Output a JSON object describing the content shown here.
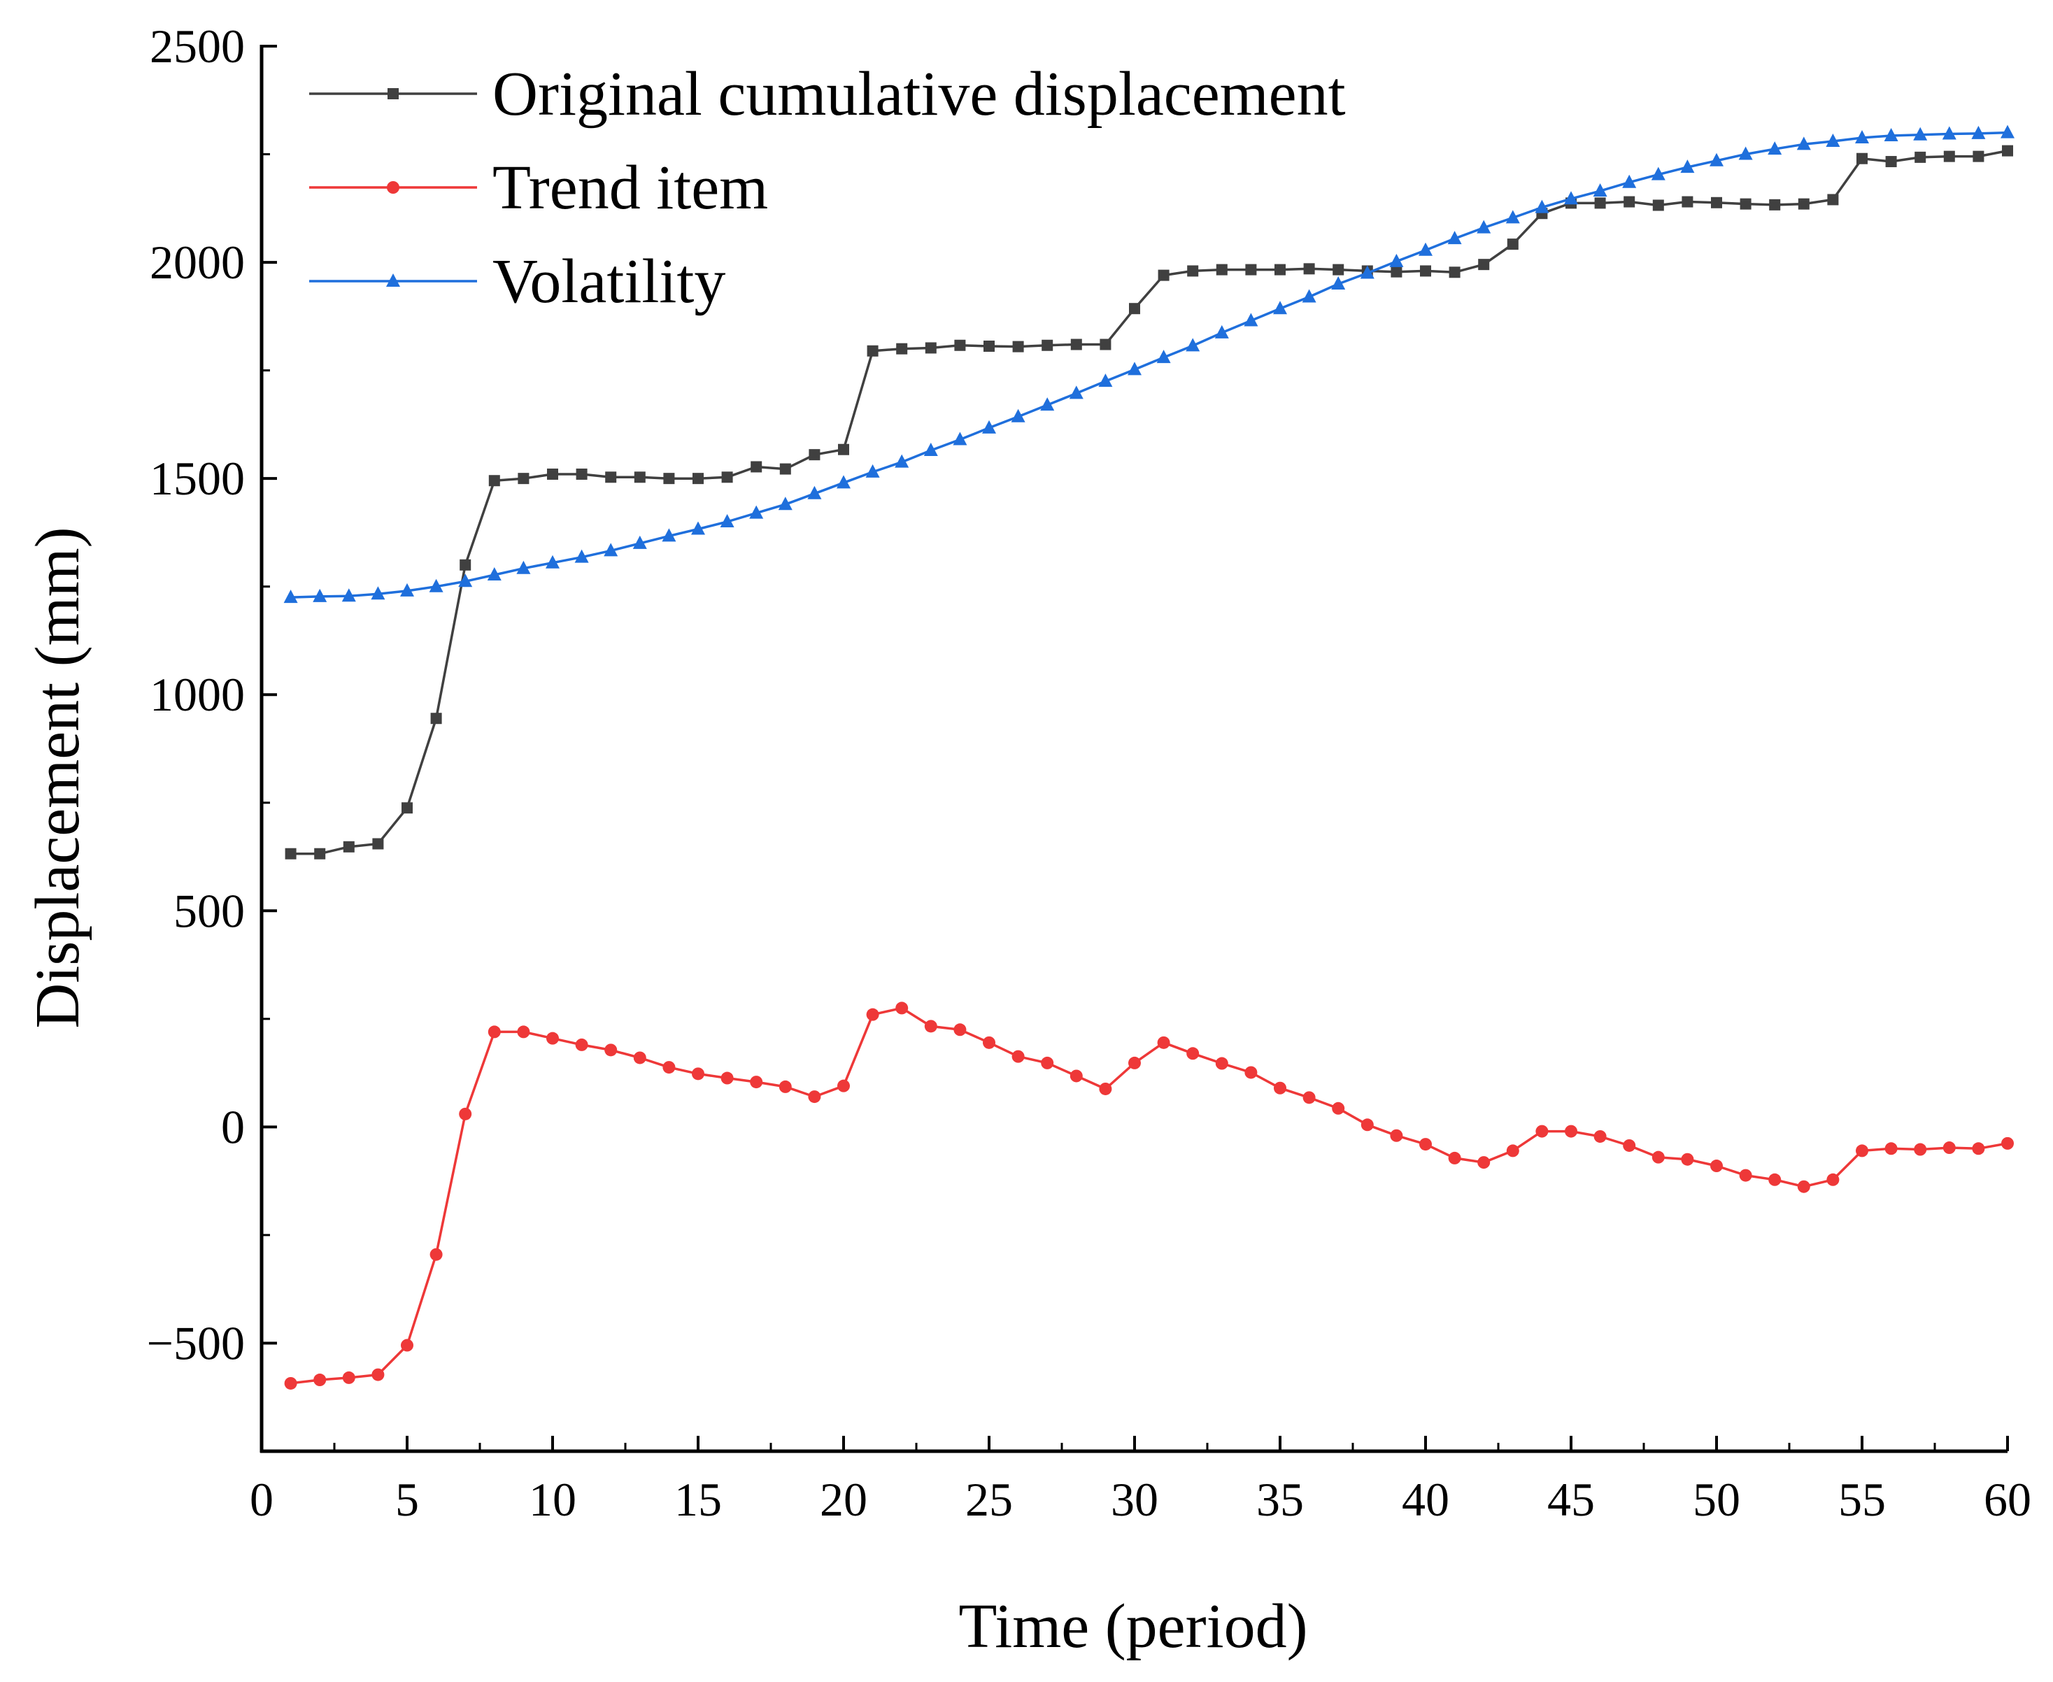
{
  "chart_data": {
    "type": "line",
    "title": "",
    "xlabel": "Time (period)",
    "ylabel": "Displacement (mm)",
    "xlim": [
      0,
      60
    ],
    "ylim": [
      -750,
      2500
    ],
    "x_ticks": [
      0,
      5,
      10,
      15,
      20,
      25,
      30,
      35,
      40,
      45,
      50,
      55,
      60
    ],
    "y_ticks": [
      -500,
      0,
      500,
      1000,
      1500,
      2000,
      2500
    ],
    "x_tick_labels": [
      "0",
      "5",
      "10",
      "15",
      "20",
      "25",
      "30",
      "35",
      "40",
      "45",
      "50",
      "55",
      "60"
    ],
    "y_tick_labels": [
      "−500",
      "0",
      "500",
      "1000",
      "1500",
      "2000",
      "2500"
    ],
    "grid": false,
    "legend_position": "top-left",
    "x": [
      1,
      2,
      3,
      4,
      5,
      6,
      7,
      8,
      9,
      10,
      11,
      12,
      13,
      14,
      15,
      16,
      17,
      18,
      19,
      20,
      21,
      22,
      23,
      24,
      25,
      26,
      27,
      28,
      29,
      30,
      31,
      32,
      33,
      34,
      35,
      36,
      37,
      38,
      39,
      40,
      41,
      42,
      43,
      44,
      45,
      46,
      47,
      48,
      49,
      50,
      51,
      52,
      53,
      54,
      55,
      56,
      57,
      58,
      59,
      60
    ],
    "series": [
      {
        "name": "Original cumulative displacement",
        "color": "#404040",
        "marker": "square",
        "values": [
          632,
          632,
          648,
          655,
          738,
          945,
          1300,
          1495,
          1500,
          1510,
          1510,
          1503,
          1503,
          1500,
          1500,
          1503,
          1527,
          1522,
          1555,
          1567,
          1795,
          1800,
          1802,
          1808,
          1806,
          1805,
          1808,
          1810,
          1810,
          1893,
          1970,
          1980,
          1983,
          1983,
          1983,
          1985,
          1983,
          1980,
          1978,
          1980,
          1977,
          1995,
          2042,
          2113,
          2137,
          2137,
          2140,
          2132,
          2140,
          2138,
          2135,
          2133,
          2135,
          2145,
          2240,
          2233,
          2243,
          2245,
          2245,
          2258
        ]
      },
      {
        "name": "Trend item",
        "color": "#ee3838",
        "marker": "circle",
        "values": [
          -593,
          -585,
          -580,
          -573,
          -505,
          -295,
          30,
          220,
          220,
          205,
          190,
          178,
          160,
          138,
          123,
          113,
          104,
          93,
          70,
          95,
          260,
          275,
          233,
          225,
          195,
          163,
          148,
          118,
          88,
          148,
          195,
          170,
          147,
          126,
          90,
          68,
          43,
          5,
          -20,
          -40,
          -72,
          -82,
          -55,
          -10,
          -10,
          -22,
          -43,
          -70,
          -75,
          -90,
          -112,
          -122,
          -138,
          -122,
          -55,
          -50,
          -52,
          -48,
          -50,
          -38
        ]
      },
      {
        "name": "Volatility",
        "color": "#1f6fdc",
        "marker": "triangle",
        "values": [
          1225,
          1227,
          1228,
          1233,
          1240,
          1250,
          1262,
          1277,
          1292,
          1305,
          1318,
          1333,
          1350,
          1367,
          1383,
          1400,
          1420,
          1440,
          1465,
          1490,
          1515,
          1538,
          1565,
          1590,
          1617,
          1643,
          1670,
          1697,
          1725,
          1752,
          1780,
          1807,
          1837,
          1865,
          1893,
          1920,
          1950,
          1975,
          2002,
          2028,
          2055,
          2080,
          2103,
          2127,
          2147,
          2165,
          2185,
          2203,
          2220,
          2235,
          2250,
          2262,
          2273,
          2280,
          2288,
          2293,
          2295,
          2297,
          2298,
          2300
        ]
      }
    ]
  }
}
